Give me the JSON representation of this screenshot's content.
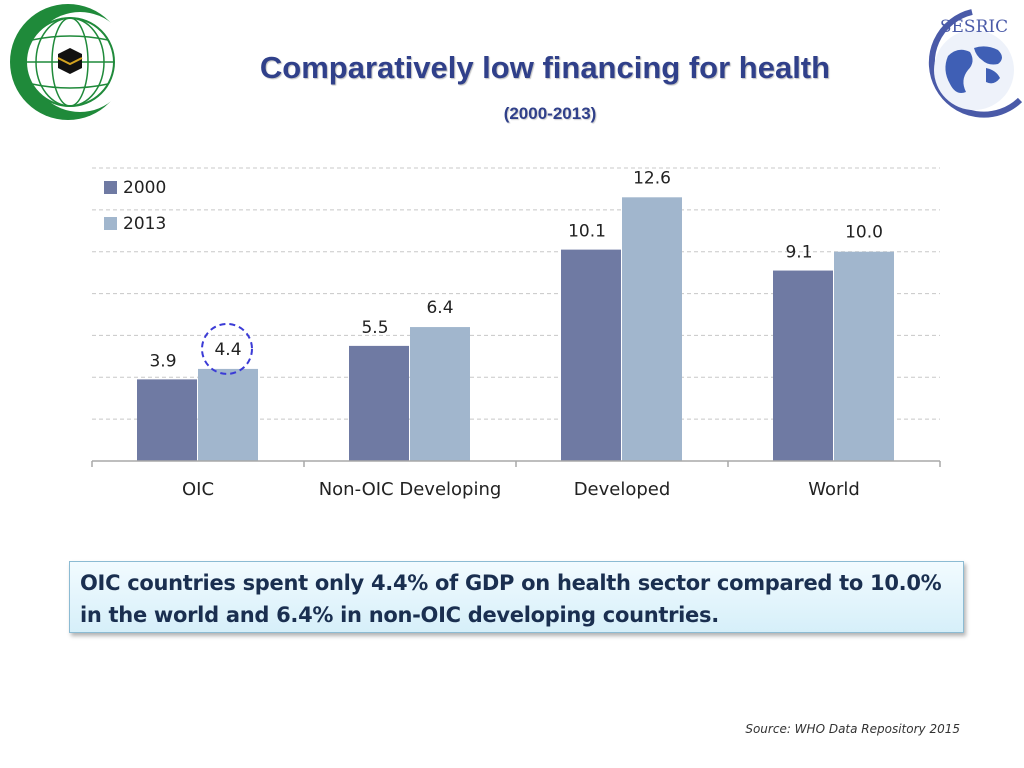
{
  "header": {
    "title": "Comparatively low financing for health",
    "subtitle": "(2000-2013)",
    "right_logo_text": "SESRIC"
  },
  "chart_data": {
    "type": "bar",
    "title": "Comparatively low financing for health",
    "subtitle": "(2000-2013)",
    "categories": [
      "OIC",
      "Non-OIC Developing",
      "Developed",
      "World"
    ],
    "series": [
      {
        "name": "2000",
        "values": [
          3.9,
          5.5,
          10.1,
          9.1
        ],
        "labels": [
          "3.9",
          "5.5",
          "10.1",
          "9.1"
        ],
        "color": "#6f7aa3"
      },
      {
        "name": "2013",
        "values": [
          4.4,
          6.4,
          12.6,
          10.0
        ],
        "labels": [
          "4.4",
          "6.4",
          "12.6",
          "10.0"
        ],
        "color": "#a1b6cd"
      }
    ],
    "xlabel": "",
    "ylabel": "",
    "ylim": [
      0,
      14
    ],
    "grid": true,
    "legend": "top-left",
    "highlight": {
      "series": "2013",
      "category": "OIC",
      "style": "dashed circle"
    }
  },
  "callout": {
    "text": "OIC countries spent only 4.4% of GDP on health sector compared to 10.0% in the world and 6.4% in non-OIC developing countries."
  },
  "source": "Source: WHO Data Repository 2015",
  "colors": {
    "title": "#30408a",
    "series_2000": "#6f7aa3",
    "series_2013": "#a1b6cd",
    "highlight_circle": "#3b3bd6",
    "callout_bg": "#dff3fb"
  }
}
